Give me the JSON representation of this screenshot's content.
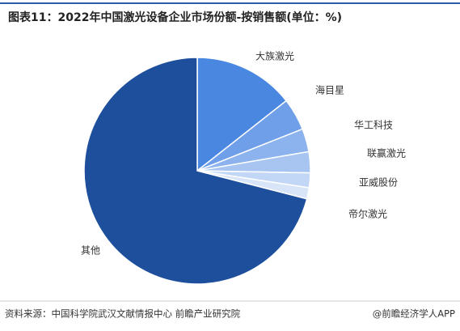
{
  "chart_data": {
    "type": "pie",
    "title": "图表11：2022年中国激光设备企业市场份额-按销售额(单位：%)",
    "categories": [
      "大族激光",
      "海目星",
      "华工科技",
      "联赢激光",
      "亚威股份",
      "帝尔激光",
      "其他"
    ],
    "values": [
      14.4,
      4.6,
      3.3,
      3.0,
      2.1,
      1.6,
      71.0
    ],
    "colors": [
      "#4a87e0",
      "#6f9fe8",
      "#8db3ee",
      "#a8c5f2",
      "#c2d6f5",
      "#d8e5f8",
      "#1d4f9c"
    ],
    "source": "资料来源：中国科学院武汉文献情报中心 前瞻产业研究院",
    "brand": "@前瞻经济学人APP"
  }
}
